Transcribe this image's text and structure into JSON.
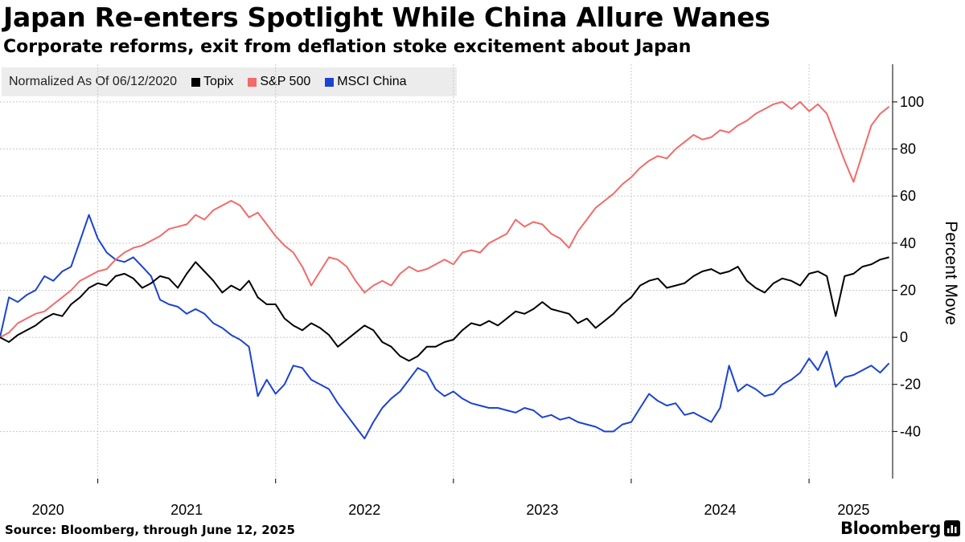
{
  "colors": {
    "topix": "#000000",
    "sp500": "#f36a6a",
    "msci_china": "#1c43d1",
    "grid": "#c8c8c8",
    "legend_bg": "#ececec"
  },
  "footer": {
    "source": "Source: Bloomberg, through June 12, 2025",
    "brand": "Bloomberg"
  },
  "chart_data": {
    "type": "line",
    "title": "Japan Re-enters Spotlight While China Allure Wanes",
    "subtitle": "Corporate reforms, exit from deflation stoke excitement about Japan",
    "legend_label": "Normalized As Of 06/12/2020",
    "xlabel": "",
    "ylabel": "Percent Move",
    "ylim": [
      -60,
      116
    ],
    "yticks": [
      100,
      80,
      60,
      40,
      20,
      0,
      -20,
      -40
    ],
    "xlim": [
      2020.45,
      2025.47
    ],
    "x_tick_labels": [
      {
        "label": "2020",
        "at": 2020.72
      },
      {
        "label": "2021",
        "at": 2021.5
      },
      {
        "label": "2022",
        "at": 2022.5
      },
      {
        "label": "2023",
        "at": 2023.5
      },
      {
        "label": "2024",
        "at": 2024.5
      },
      {
        "label": "2025",
        "at": 2025.25
      }
    ],
    "x_gridlines": [
      2021.0,
      2022.0,
      2023.0,
      2024.0,
      2025.0
    ],
    "series": [
      {
        "name": "Topix",
        "key": "topix",
        "x": [
          2020.45,
          2020.5,
          2020.55,
          2020.6,
          2020.65,
          2020.7,
          2020.75,
          2020.8,
          2020.85,
          2020.9,
          2020.95,
          2021.0,
          2021.05,
          2021.1,
          2021.15,
          2021.2,
          2021.25,
          2021.3,
          2021.35,
          2021.4,
          2021.45,
          2021.5,
          2021.55,
          2021.6,
          2021.65,
          2021.7,
          2021.75,
          2021.8,
          2021.85,
          2021.9,
          2021.95,
          2022.0,
          2022.05,
          2022.1,
          2022.15,
          2022.2,
          2022.25,
          2022.3,
          2022.35,
          2022.4,
          2022.45,
          2022.5,
          2022.55,
          2022.6,
          2022.65,
          2022.7,
          2022.75,
          2022.8,
          2022.85,
          2022.9,
          2022.95,
          2023.0,
          2023.05,
          2023.1,
          2023.15,
          2023.2,
          2023.25,
          2023.3,
          2023.35,
          2023.4,
          2023.45,
          2023.5,
          2023.55,
          2023.6,
          2023.65,
          2023.7,
          2023.75,
          2023.8,
          2023.85,
          2023.9,
          2023.95,
          2024.0,
          2024.05,
          2024.1,
          2024.15,
          2024.2,
          2024.25,
          2024.3,
          2024.35,
          2024.4,
          2024.45,
          2024.5,
          2024.55,
          2024.6,
          2024.65,
          2024.7,
          2024.75,
          2024.8,
          2024.85,
          2024.9,
          2024.95,
          2025.0,
          2025.05,
          2025.1,
          2025.15,
          2025.2,
          2025.25,
          2025.3,
          2025.35,
          2025.4,
          2025.45
        ],
        "values": [
          0,
          -2,
          1,
          3,
          5,
          8,
          10,
          9,
          14,
          17,
          21,
          23,
          22,
          26,
          27,
          25,
          21,
          23,
          26,
          25,
          21,
          27,
          32,
          28,
          24,
          19,
          22,
          20,
          24,
          17,
          14,
          14,
          8,
          5,
          3,
          6,
          4,
          1,
          -4,
          -1,
          2,
          5,
          3,
          -2,
          -4,
          -8,
          -10,
          -8,
          -4,
          -4,
          -2,
          -1,
          3,
          6,
          5,
          7,
          5,
          8,
          11,
          10,
          12,
          15,
          12,
          11,
          10,
          6,
          8,
          4,
          7,
          10,
          14,
          17,
          22,
          24,
          25,
          21,
          22,
          23,
          26,
          28,
          29,
          27,
          28,
          30,
          24,
          21,
          19,
          23,
          25,
          24,
          22,
          27,
          28,
          26,
          9,
          26,
          27,
          30,
          31,
          33,
          34
        ]
      },
      {
        "name": "S&P 500",
        "key": "sp500",
        "x": [
          2020.45,
          2020.5,
          2020.55,
          2020.6,
          2020.65,
          2020.7,
          2020.75,
          2020.8,
          2020.85,
          2020.9,
          2020.95,
          2021.0,
          2021.05,
          2021.1,
          2021.15,
          2021.2,
          2021.25,
          2021.3,
          2021.35,
          2021.4,
          2021.45,
          2021.5,
          2021.55,
          2021.6,
          2021.65,
          2021.7,
          2021.75,
          2021.8,
          2021.85,
          2021.9,
          2021.95,
          2022.0,
          2022.05,
          2022.1,
          2022.15,
          2022.2,
          2022.25,
          2022.3,
          2022.35,
          2022.4,
          2022.45,
          2022.5,
          2022.55,
          2022.6,
          2022.65,
          2022.7,
          2022.75,
          2022.8,
          2022.85,
          2022.9,
          2022.95,
          2023.0,
          2023.05,
          2023.1,
          2023.15,
          2023.2,
          2023.25,
          2023.3,
          2023.35,
          2023.4,
          2023.45,
          2023.5,
          2023.55,
          2023.6,
          2023.65,
          2023.7,
          2023.75,
          2023.8,
          2023.85,
          2023.9,
          2023.95,
          2024.0,
          2024.05,
          2024.1,
          2024.15,
          2024.2,
          2024.25,
          2024.3,
          2024.35,
          2024.4,
          2024.45,
          2024.5,
          2024.55,
          2024.6,
          2024.65,
          2024.7,
          2024.75,
          2024.8,
          2024.85,
          2024.9,
          2024.95,
          2025.0,
          2025.05,
          2025.1,
          2025.15,
          2025.2,
          2025.25,
          2025.3,
          2025.35,
          2025.4,
          2025.45
        ],
        "values": [
          0,
          2,
          6,
          8,
          10,
          11,
          14,
          17,
          20,
          24,
          26,
          28,
          29,
          33,
          36,
          38,
          39,
          41,
          43,
          46,
          47,
          48,
          52,
          50,
          54,
          56,
          58,
          56,
          51,
          53,
          48,
          43,
          39,
          36,
          30,
          22,
          28,
          34,
          33,
          30,
          24,
          19,
          22,
          24,
          22,
          27,
          30,
          28,
          29,
          31,
          33,
          31,
          36,
          37,
          36,
          40,
          42,
          44,
          50,
          47,
          49,
          48,
          44,
          42,
          38,
          45,
          50,
          55,
          58,
          61,
          65,
          68,
          72,
          75,
          77,
          76,
          80,
          83,
          86,
          84,
          85,
          88,
          87,
          90,
          92,
          95,
          97,
          99,
          100,
          97,
          100,
          96,
          99,
          95,
          85,
          75,
          66,
          78,
          90,
          95,
          98
        ]
      },
      {
        "name": "MSCI China",
        "key": "msci_china",
        "x": [
          2020.45,
          2020.5,
          2020.55,
          2020.6,
          2020.65,
          2020.7,
          2020.75,
          2020.8,
          2020.85,
          2020.9,
          2020.95,
          2021.0,
          2021.05,
          2021.1,
          2021.15,
          2021.2,
          2021.25,
          2021.3,
          2021.35,
          2021.4,
          2021.45,
          2021.5,
          2021.55,
          2021.6,
          2021.65,
          2021.7,
          2021.75,
          2021.8,
          2021.85,
          2021.9,
          2021.95,
          2022.0,
          2022.05,
          2022.1,
          2022.15,
          2022.2,
          2022.25,
          2022.3,
          2022.35,
          2022.4,
          2022.45,
          2022.5,
          2022.55,
          2022.6,
          2022.65,
          2022.7,
          2022.75,
          2022.8,
          2022.85,
          2022.9,
          2022.95,
          2023.0,
          2023.05,
          2023.1,
          2023.15,
          2023.2,
          2023.25,
          2023.3,
          2023.35,
          2023.4,
          2023.45,
          2023.5,
          2023.55,
          2023.6,
          2023.65,
          2023.7,
          2023.75,
          2023.8,
          2023.85,
          2023.9,
          2023.95,
          2024.0,
          2024.05,
          2024.1,
          2024.15,
          2024.2,
          2024.25,
          2024.3,
          2024.35,
          2024.4,
          2024.45,
          2024.5,
          2024.55,
          2024.6,
          2024.65,
          2024.7,
          2024.75,
          2024.8,
          2024.85,
          2024.9,
          2024.95,
          2025.0,
          2025.05,
          2025.1,
          2025.15,
          2025.2,
          2025.25,
          2025.3,
          2025.35,
          2025.4,
          2025.45
        ],
        "values": [
          0,
          17,
          15,
          18,
          20,
          26,
          24,
          28,
          30,
          41,
          52,
          42,
          36,
          33,
          32,
          34,
          30,
          26,
          16,
          14,
          13,
          10,
          12,
          10,
          6,
          4,
          1,
          -1,
          -4,
          -25,
          -18,
          -24,
          -20,
          -12,
          -13,
          -18,
          -20,
          -22,
          -28,
          -33,
          -38,
          -43,
          -36,
          -30,
          -26,
          -23,
          -18,
          -13,
          -15,
          -22,
          -25,
          -23,
          -26,
          -28,
          -29,
          -30,
          -30,
          -31,
          -32,
          -30,
          -31,
          -34,
          -33,
          -35,
          -34,
          -36,
          -37,
          -38,
          -40,
          -40,
          -37,
          -36,
          -30,
          -24,
          -27,
          -29,
          -28,
          -33,
          -32,
          -34,
          -36,
          -30,
          -12,
          -23,
          -20,
          -22,
          -25,
          -24,
          -20,
          -18,
          -15,
          -9,
          -14,
          -6,
          -21,
          -17,
          -16,
          -14,
          -12,
          -15,
          -11
        ]
      }
    ]
  }
}
